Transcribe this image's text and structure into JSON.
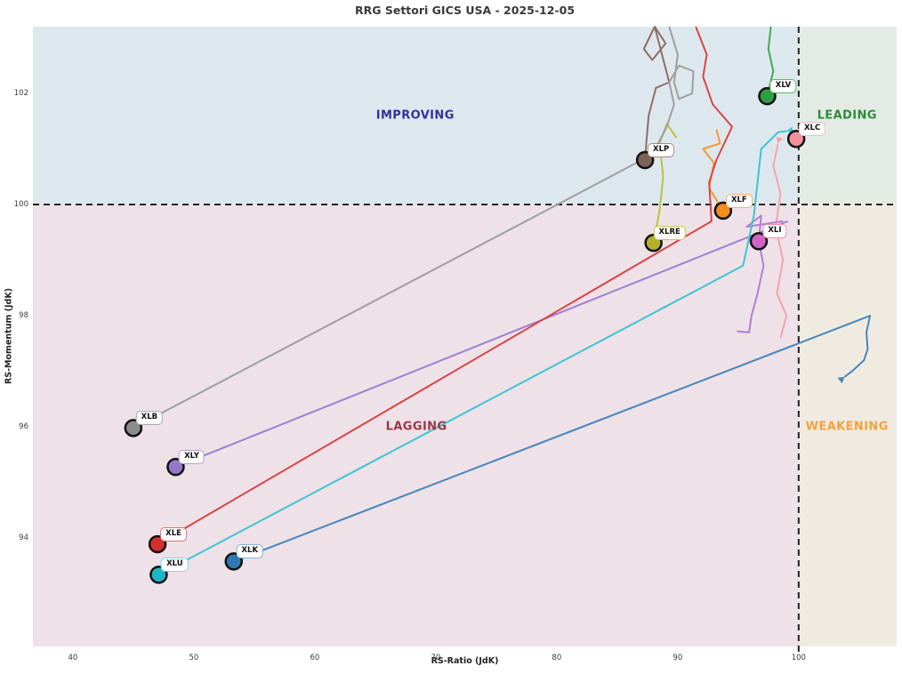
{
  "chart_data": {
    "type": "scatter",
    "title": "RRG Settori GICS USA - 2025-12-05",
    "xlabel": "RS-Ratio (JdK)",
    "ylabel": "RS-Momentum (JdK)",
    "xlim": [
      36.7,
      108.1
    ],
    "ylim": [
      92.05,
      103.2
    ],
    "x_ticks": [
      40,
      50,
      60,
      70,
      80,
      90,
      100
    ],
    "y_ticks": [
      94,
      96,
      98,
      100,
      102
    ],
    "center": {
      "x": 100,
      "y": 100
    },
    "grid": false,
    "legend": "none",
    "crosshair_color": "#222222",
    "quadrants": [
      {
        "name": "improving",
        "label": "IMPROVING",
        "text_color": "#31319e",
        "bg": "#dde8ee",
        "label_x": 68.3,
        "label_y": 101.6
      },
      {
        "name": "leading",
        "label": "LEADING",
        "text_color": "#2e8b3c",
        "bg": "#e3ebe5",
        "label_x": 104.0,
        "label_y": 101.6
      },
      {
        "name": "lagging",
        "label": "LAGGING",
        "text_color": "#a03545",
        "bg": "#eee1e8",
        "label_x": 68.4,
        "label_y": 96.0
      },
      {
        "name": "weakening",
        "label": "WEAKENING",
        "text_color": "#f5a23c",
        "bg": "#f0ebe0",
        "label_x": 104.0,
        "label_y": 96.0
      }
    ],
    "series": [
      {
        "ticker": "XLV",
        "x": 97.4,
        "y": 101.95,
        "color": "#2f9e41",
        "trail_color": "#3fae4a",
        "label_border": "#5cb85c",
        "trail": [
          [
            97.7,
            103.2
          ],
          [
            97.5,
            102.8
          ],
          [
            97.9,
            102.4
          ],
          [
            97.4,
            101.95
          ]
        ],
        "arrow": false
      },
      {
        "ticker": "XLC",
        "x": 99.8,
        "y": 101.18,
        "color": "#f2919c",
        "trail_color": "#f5a3aa",
        "label_border": "#f5b8bd",
        "trail": [
          [
            98.5,
            97.6
          ],
          [
            99.0,
            98.0
          ],
          [
            98.2,
            98.4
          ],
          [
            98.7,
            99.0
          ],
          [
            98.1,
            99.6
          ],
          [
            98.5,
            100.2
          ],
          [
            97.9,
            100.7
          ],
          [
            98.3,
            101.1
          ]
        ],
        "arrow": true
      },
      {
        "ticker": "XLP",
        "x": 87.3,
        "y": 100.8,
        "color": "#7f625b",
        "trail_color": "#8d6e66",
        "label_border": "#a58a82",
        "trail": [
          [
            88.1,
            103.2
          ],
          [
            87.2,
            102.8
          ],
          [
            87.9,
            102.6
          ],
          [
            89.0,
            102.9
          ],
          [
            88.1,
            103.2
          ],
          [
            89.3,
            102.2
          ],
          [
            88.2,
            102.1
          ],
          [
            87.6,
            101.6
          ],
          [
            87.4,
            101.1
          ],
          [
            87.3,
            100.8
          ]
        ],
        "arrow": false
      },
      {
        "ticker": "XLF",
        "x": 93.75,
        "y": 99.89,
        "color": "#f28e1c",
        "trail_color": "#f29a33",
        "label_border": "#f7b35e",
        "trail": [
          [
            93.2,
            101.35
          ],
          [
            93.5,
            101.1
          ],
          [
            92.1,
            101.0
          ],
          [
            93.0,
            100.75
          ],
          [
            92.6,
            100.3
          ],
          [
            93.75,
            99.89
          ]
        ],
        "arrow": false
      },
      {
        "ticker": "XLRE",
        "x": 88.0,
        "y": 99.31,
        "color": "#b5b02a",
        "trail_color": "#bcc23a",
        "label_border": "#c9c94f",
        "trail": [
          [
            89.9,
            101.2
          ],
          [
            89.1,
            101.45
          ],
          [
            88.5,
            101.1
          ],
          [
            88.8,
            100.5
          ],
          [
            88.5,
            99.9
          ],
          [
            88.0,
            99.31
          ]
        ],
        "arrow": false
      },
      {
        "ticker": "XLI",
        "x": 96.7,
        "y": 99.34,
        "color": "#cf64c2",
        "trail_color": "#b07fd4",
        "label_border": "#f48fb1",
        "trail": [
          [
            98.7,
            99.7
          ],
          [
            95.7,
            99.6
          ],
          [
            96.9,
            99.8
          ],
          [
            96.7,
            99.34
          ],
          [
            97.1,
            98.9
          ],
          [
            96.6,
            98.4
          ],
          [
            96.1,
            98.0
          ],
          [
            95.9,
            97.7
          ],
          [
            94.9,
            97.72
          ]
        ],
        "arrow": false
      },
      {
        "ticker": "XLB",
        "x": 45.0,
        "y": 95.98,
        "color": "#8c8c8c",
        "trail_color": "#9e9e9e",
        "label_border": "#aaaaaa",
        "trail": [
          [
            45.0,
            95.98
          ],
          [
            87.9,
            100.9
          ],
          [
            89.1,
            101.4
          ],
          [
            89.7,
            101.8
          ],
          [
            89.3,
            102.2
          ],
          [
            90.1,
            102.5
          ],
          [
            91.3,
            102.4
          ],
          [
            91.2,
            102.0
          ],
          [
            90.1,
            101.9
          ],
          [
            89.7,
            102.2
          ],
          [
            90.0,
            102.7
          ],
          [
            89.3,
            103.2
          ]
        ],
        "arrow": false
      },
      {
        "ticker": "XLY",
        "x": 48.5,
        "y": 95.28,
        "color": "#9477cd",
        "trail_color": "#9d7fd4",
        "label_border": "#b39ddb",
        "trail": [
          [
            48.5,
            95.28
          ],
          [
            99.1,
            99.7
          ]
        ],
        "arrow": false
      },
      {
        "ticker": "XLE",
        "x": 47.0,
        "y": 93.89,
        "color": "#d32f2f",
        "trail_color": "#da4545",
        "label_border": "#e57373",
        "trail": [
          [
            47.0,
            93.89
          ],
          [
            92.8,
            99.7
          ],
          [
            92.6,
            100.4
          ],
          [
            93.2,
            100.8
          ],
          [
            94.5,
            101.4
          ],
          [
            92.9,
            101.8
          ],
          [
            92.1,
            102.3
          ],
          [
            92.4,
            102.7
          ],
          [
            91.5,
            103.2
          ]
        ],
        "arrow": false
      },
      {
        "ticker": "XLU",
        "x": 47.1,
        "y": 93.34,
        "color": "#1cb8c8",
        "trail_color": "#3fc4d2",
        "label_border": "#7fd8e2",
        "trail": [
          [
            47.1,
            93.34
          ],
          [
            95.4,
            98.9
          ],
          [
            96.3,
            99.8
          ],
          [
            96.6,
            100.4
          ],
          [
            96.9,
            101.0
          ],
          [
            98.3,
            101.3
          ],
          [
            99.0,
            101.32
          ]
        ],
        "arrow": true
      },
      {
        "ticker": "XLK",
        "x": 53.3,
        "y": 93.58,
        "color": "#3078b4",
        "trail_color": "#4886bc",
        "label_border": "#82b4d8",
        "trail": [
          [
            53.3,
            93.58
          ],
          [
            105.9,
            98.0
          ],
          [
            105.6,
            97.7
          ],
          [
            105.7,
            97.4
          ],
          [
            105.4,
            97.2
          ],
          [
            104.4,
            97.0
          ],
          [
            103.8,
            96.9
          ]
        ],
        "arrow": true
      }
    ]
  }
}
